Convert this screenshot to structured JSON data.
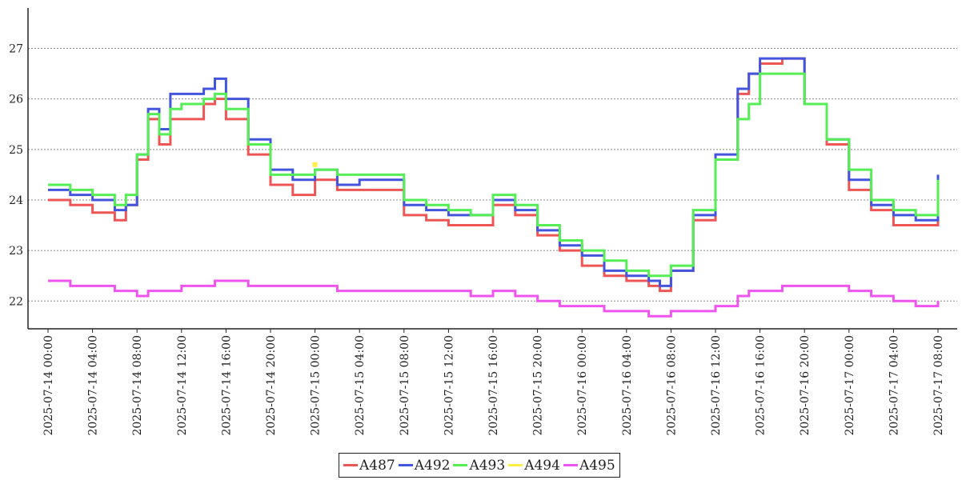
{
  "chart_data": {
    "type": "line",
    "title": "",
    "xlabel": "",
    "ylabel": "",
    "ylim": [
      21.45,
      27.8
    ],
    "yticks": [
      22,
      23,
      24,
      25,
      26,
      27
    ],
    "grid": "horizontal dotted",
    "legend_position": "bottom-center",
    "x_tick_labels": [
      "2025-07-14  00:00",
      "2025-07-14  04:00",
      "2025-07-14  08:00",
      "2025-07-14  12:00",
      "2025-07-14  16:00",
      "2025-07-14  20:00",
      "2025-07-15  00:00",
      "2025-07-15  04:00",
      "2025-07-15  08:00",
      "2025-07-15  12:00",
      "2025-07-15  16:00",
      "2025-07-15  20:00",
      "2025-07-16  00:00",
      "2025-07-16  04:00",
      "2025-07-16  08:00",
      "2025-07-16  12:00",
      "2025-07-16  16:00",
      "2025-07-16  20:00",
      "2025-07-17  00:00",
      "2025-07-17  04:00",
      "2025-07-17  08:00"
    ],
    "x": [
      "2025-07-14 00:00",
      "2025-07-14 02:00",
      "2025-07-14 04:00",
      "2025-07-14 06:00",
      "2025-07-14 07:00",
      "2025-07-14 08:00",
      "2025-07-14 09:00",
      "2025-07-14 10:00",
      "2025-07-14 11:00",
      "2025-07-14 12:00",
      "2025-07-14 14:00",
      "2025-07-14 15:00",
      "2025-07-14 16:00",
      "2025-07-14 18:00",
      "2025-07-14 20:00",
      "2025-07-14 22:00",
      "2025-07-15 00:00",
      "2025-07-15 02:00",
      "2025-07-15 04:00",
      "2025-07-15 06:00",
      "2025-07-15 08:00",
      "2025-07-15 10:00",
      "2025-07-15 12:00",
      "2025-07-15 14:00",
      "2025-07-15 16:00",
      "2025-07-15 18:00",
      "2025-07-15 20:00",
      "2025-07-15 22:00",
      "2025-07-16 00:00",
      "2025-07-16 02:00",
      "2025-07-16 04:00",
      "2025-07-16 06:00",
      "2025-07-16 07:00",
      "2025-07-16 08:00",
      "2025-07-16 10:00",
      "2025-07-16 12:00",
      "2025-07-16 14:00",
      "2025-07-16 15:00",
      "2025-07-16 16:00",
      "2025-07-16 18:00",
      "2025-07-16 20:00",
      "2025-07-16 22:00",
      "2025-07-17 00:00",
      "2025-07-17 02:00",
      "2025-07-17 04:00",
      "2025-07-17 06:00",
      "2025-07-17 08:00"
    ],
    "series": [
      {
        "name": "A487",
        "color": "#ee5555",
        "values": [
          24.0,
          23.9,
          23.75,
          23.6,
          23.9,
          24.8,
          25.6,
          25.1,
          25.6,
          25.6,
          25.9,
          26.0,
          25.6,
          24.9,
          24.3,
          24.1,
          24.4,
          24.2,
          24.2,
          24.2,
          23.7,
          23.6,
          23.5,
          23.5,
          23.9,
          23.7,
          23.3,
          23.0,
          22.7,
          22.5,
          22.4,
          22.3,
          22.2,
          22.6,
          23.6,
          24.8,
          26.1,
          26.5,
          26.7,
          26.8,
          25.9,
          25.1,
          24.2,
          23.8,
          23.5,
          23.5,
          24.3
        ]
      },
      {
        "name": "A492",
        "color": "#4455dd",
        "values": [
          24.2,
          24.1,
          24.0,
          23.8,
          23.9,
          24.9,
          25.8,
          25.4,
          26.1,
          26.1,
          26.2,
          26.4,
          26.0,
          25.2,
          24.6,
          24.4,
          24.6,
          24.3,
          24.4,
          24.4,
          23.9,
          23.8,
          23.7,
          23.7,
          24.0,
          23.8,
          23.4,
          23.1,
          22.9,
          22.6,
          22.5,
          22.4,
          22.3,
          22.6,
          23.7,
          24.9,
          26.2,
          26.5,
          26.8,
          26.8,
          25.9,
          25.2,
          24.4,
          23.9,
          23.7,
          23.6,
          24.5
        ]
      },
      {
        "name": "A493",
        "color": "#55ee55",
        "values": [
          24.3,
          24.2,
          24.1,
          23.9,
          24.1,
          24.9,
          25.7,
          25.3,
          25.8,
          25.9,
          26.0,
          26.1,
          25.8,
          25.1,
          24.5,
          24.5,
          24.6,
          24.5,
          24.5,
          24.5,
          24.0,
          23.9,
          23.8,
          23.7,
          24.1,
          23.9,
          23.5,
          23.2,
          23.0,
          22.8,
          22.6,
          22.5,
          22.5,
          22.7,
          23.8,
          24.8,
          25.6,
          25.9,
          26.5,
          26.5,
          25.9,
          25.2,
          24.6,
          24.0,
          23.8,
          23.7,
          24.4
        ]
      },
      {
        "name": "A494",
        "color": "#ffee44",
        "values": [
          null,
          null,
          null,
          null,
          null,
          null,
          null,
          null,
          null,
          null,
          null,
          null,
          null,
          null,
          null,
          null,
          24.7,
          null,
          null,
          null,
          null,
          null,
          null,
          null,
          null,
          null,
          null,
          null,
          null,
          null,
          null,
          null,
          null,
          null,
          null,
          null,
          null,
          null,
          null,
          null,
          null,
          null,
          null,
          null,
          null,
          null,
          null
        ]
      },
      {
        "name": "A495",
        "color": "#ee55ee",
        "values": [
          22.4,
          22.3,
          22.3,
          22.2,
          22.2,
          22.1,
          22.2,
          22.2,
          22.2,
          22.3,
          22.3,
          22.4,
          22.4,
          22.3,
          22.3,
          22.3,
          22.3,
          22.2,
          22.2,
          22.2,
          22.2,
          22.2,
          22.2,
          22.1,
          22.2,
          22.1,
          22.0,
          21.9,
          21.9,
          21.8,
          21.8,
          21.7,
          21.7,
          21.8,
          21.8,
          21.9,
          22.1,
          22.2,
          22.2,
          22.3,
          22.3,
          22.3,
          22.2,
          22.1,
          22.0,
          21.9,
          22.0
        ]
      }
    ]
  }
}
